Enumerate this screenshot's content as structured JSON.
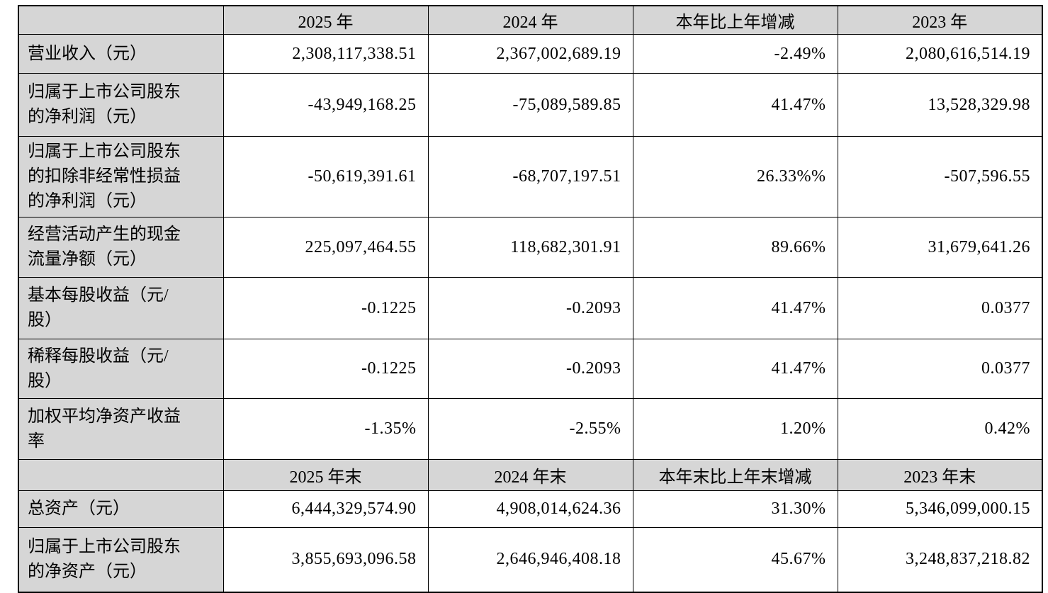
{
  "colors": {
    "header_bg": "#d6d6d6",
    "label_column_bg": "#d6d6d6",
    "cell_bg": "#ffffff",
    "border": "#000000",
    "text": "#000000"
  },
  "table": {
    "period_header": {
      "blank": "",
      "y2025": "2025 年",
      "y2024": "2024 年",
      "change": "本年比上年增减",
      "y2023": "2023 年"
    },
    "period_rows": [
      {
        "label": "营业收入（元）",
        "y2025": "2,308,117,338.51",
        "y2024": "2,367,002,689.19",
        "change": "-2.49%",
        "y2023": "2,080,616,514.19"
      },
      {
        "label": "归属于上市公司股东\n的净利润（元）",
        "y2025": "-43,949,168.25",
        "y2024": "-75,089,589.85",
        "change": "41.47%",
        "y2023": "13,528,329.98"
      },
      {
        "label": "归属于上市公司股东\n的扣除非经常性损益\n的净利润（元）",
        "y2025": "-50,619,391.61",
        "y2024": "-68,707,197.51",
        "change": "26.33%%",
        "y2023": "-507,596.55"
      },
      {
        "label": "经营活动产生的现金\n流量净额（元）",
        "y2025": "225,097,464.55",
        "y2024": "118,682,301.91",
        "change": "89.66%",
        "y2023": "31,679,641.26"
      },
      {
        "label": "基本每股收益（元/\n股）",
        "y2025": "-0.1225",
        "y2024": "-0.2093",
        "change": "41.47%",
        "y2023": "0.0377"
      },
      {
        "label": "稀释每股收益（元/\n股）",
        "y2025": "-0.1225",
        "y2024": "-0.2093",
        "change": "41.47%",
        "y2023": "0.0377"
      },
      {
        "label": "加权平均净资产收益\n率",
        "y2025": "-1.35%",
        "y2024": "-2.55%",
        "change": "1.20%",
        "y2023": "0.42%"
      }
    ],
    "snapshot_header": {
      "blank": "",
      "y2025": "2025 年末",
      "y2024": "2024 年末",
      "change": "本年末比上年末增减",
      "y2023": "2023 年末"
    },
    "snapshot_rows": [
      {
        "label": "总资产（元）",
        "y2025": "6,444,329,574.90",
        "y2024": "4,908,014,624.36",
        "change": "31.30%",
        "y2023": "5,346,099,000.15"
      },
      {
        "label": "归属于上市公司股东\n的净资产（元）",
        "y2025": "3,855,693,096.58",
        "y2024": "2,646,946,408.18",
        "change": "45.67%",
        "y2023": "3,248,837,218.82"
      }
    ]
  }
}
